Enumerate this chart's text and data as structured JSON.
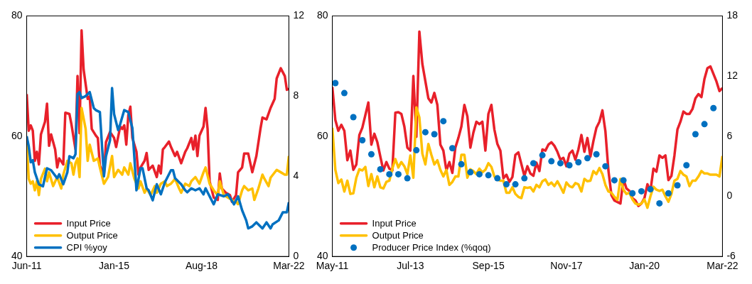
{
  "chart_data": [
    {
      "type": "line",
      "xlim": [
        "2011-06",
        "2022-03"
      ],
      "xticks": [
        {
          "value": "2011-06",
          "label": "Jun-11"
        },
        {
          "value": "2015-01",
          "label": "Jan-15"
        },
        {
          "value": "2018-08",
          "label": "Aug-18"
        },
        {
          "value": "2022-03",
          "label": "Mar-22"
        }
      ],
      "ylim": [
        40,
        80
      ],
      "yticks": [
        40,
        60,
        80
      ],
      "y2lim": [
        0,
        12
      ],
      "y2ticks": [
        0,
        4,
        8,
        12
      ],
      "legend": "bottom left",
      "series": [
        {
          "name": "Input Price",
          "color": "#e8202a",
          "marker": "none",
          "x": [
            "2011-06",
            "2011-07",
            "2011-08",
            "2011-09",
            "2011-10",
            "2011-11",
            "2011-12",
            "2012-01",
            "2012-03",
            "2012-04",
            "2012-05",
            "2012-06",
            "2012-08",
            "2012-09",
            "2012-10",
            "2012-12",
            "2013-01",
            "2013-03",
            "2013-04",
            "2013-06",
            "2013-07",
            "2013-08",
            "2013-09",
            "2013-10",
            "2013-12",
            "2014-01",
            "2014-02",
            "2014-04",
            "2014-05",
            "2014-06",
            "2014-08",
            "2014-09",
            "2014-11",
            "2015-01",
            "2015-02",
            "2015-04",
            "2015-05",
            "2015-06",
            "2015-07",
            "2015-08",
            "2015-09",
            "2015-10",
            "2015-12",
            "2016-01",
            "2016-02",
            "2016-04",
            "2016-05",
            "2016-06",
            "2016-08",
            "2016-10",
            "2016-11",
            "2016-12",
            "2017-01",
            "2017-02",
            "2017-04",
            "2017-05",
            "2017-07",
            "2017-08",
            "2017-10",
            "2017-12",
            "2018-01",
            "2018-03",
            "2018-04",
            "2018-05",
            "2018-06",
            "2018-07",
            "2018-09",
            "2018-10",
            "2018-11",
            "2018-12",
            "2019-02",
            "2019-04",
            "2019-05",
            "2019-06",
            "2019-08",
            "2019-10",
            "2019-11",
            "2020-01",
            "2020-02",
            "2020-04",
            "2020-05",
            "2020-07",
            "2020-09",
            "2020-11",
            "2021-01",
            "2021-02",
            "2021-04",
            "2021-06",
            "2021-08",
            "2021-09",
            "2021-11",
            "2022-01",
            "2022-02",
            "2022-03"
          ],
          "values": [
            67,
            60.9,
            61.8,
            60.9,
            55.9,
            57.4,
            55.3,
            60.3,
            62.4,
            65.4,
            58.4,
            60.3,
            57.8,
            54.8,
            56.3,
            55.3,
            63.9,
            63.7,
            62,
            57.8,
            70,
            60.5,
            77.6,
            71.1,
            66.2,
            66.6,
            61.2,
            60.1,
            59.7,
            55.1,
            53.6,
            59,
            60.7,
            59.7,
            58.2,
            61.6,
            61.2,
            61.8,
            58.6,
            63.5,
            64.9,
            59.7,
            57.4,
            53.6,
            54.8,
            55.9,
            57.2,
            54.4,
            55.1,
            53.2,
            55.1,
            53.8,
            57.8,
            58.2,
            59.1,
            58.2,
            56.7,
            57.4,
            55.5,
            57.4,
            58,
            59.7,
            57.8,
            60.1,
            56.7,
            60.1,
            61.6,
            64.7,
            61.2,
            52.5,
            49.8,
            49.4,
            53.8,
            51.3,
            50.6,
            50.2,
            49.1,
            50.2,
            54,
            54.8,
            57.1,
            57.1,
            54,
            56.7,
            61.2,
            63.1,
            62.8,
            64.7,
            66.2,
            69.6,
            71.3,
            70,
            67.7,
            67.9
          ]
        },
        {
          "name": "Output Price",
          "color": "#ffc000",
          "marker": "none",
          "x": [
            "2011-06",
            "2011-07",
            "2011-08",
            "2011-09",
            "2011-10",
            "2011-11",
            "2011-12",
            "2012-01",
            "2012-03",
            "2012-04",
            "2012-05",
            "2012-07",
            "2012-09",
            "2012-11",
            "2012-12",
            "2013-02",
            "2013-04",
            "2013-05",
            "2013-06",
            "2013-07",
            "2013-08",
            "2013-09",
            "2013-11",
            "2013-12",
            "2014-01",
            "2014-03",
            "2014-05",
            "2014-06",
            "2014-08",
            "2014-10",
            "2014-12",
            "2015-01",
            "2015-03",
            "2015-05",
            "2015-06",
            "2015-08",
            "2015-09",
            "2015-11",
            "2016-01",
            "2016-02",
            "2016-04",
            "2016-05",
            "2016-07",
            "2016-09",
            "2016-10",
            "2016-12",
            "2017-02",
            "2017-03",
            "2017-05",
            "2017-07",
            "2017-09",
            "2017-10",
            "2017-12",
            "2018-02",
            "2018-03",
            "2018-05",
            "2018-07",
            "2018-09",
            "2018-10",
            "2018-12",
            "2019-02",
            "2019-04",
            "2019-05",
            "2019-07",
            "2019-09",
            "2019-11",
            "2019-12",
            "2020-01",
            "2020-02",
            "2020-04",
            "2020-05",
            "2020-07",
            "2020-09",
            "2020-10",
            "2020-12",
            "2021-02",
            "2021-03",
            "2021-05",
            "2021-06",
            "2021-09",
            "2021-11",
            "2022-01",
            "2022-02",
            "2022-03"
          ],
          "values": [
            59,
            52.9,
            52.1,
            52.5,
            51,
            52.5,
            50.2,
            52.9,
            54.6,
            52.5,
            54,
            51.7,
            53.2,
            51.3,
            53.6,
            55.9,
            55.5,
            53.6,
            55.5,
            56.3,
            53.2,
            64.7,
            61.2,
            55.9,
            58.6,
            55.9,
            56.3,
            54.8,
            52.1,
            53.2,
            56.7,
            53.2,
            54.4,
            53.6,
            54.8,
            53.6,
            55.5,
            52.9,
            51.3,
            52.5,
            50.6,
            51.3,
            50.2,
            51.7,
            50.6,
            52.1,
            52.5,
            51.7,
            52.1,
            52.9,
            51.3,
            50.6,
            52.1,
            51.7,
            52.5,
            53.2,
            52.1,
            54,
            54.8,
            52.1,
            51,
            50.2,
            52.5,
            50.2,
            49.8,
            49.4,
            49.1,
            49.1,
            48.7,
            51,
            51.7,
            51,
            51.3,
            49.4,
            51.3,
            53.6,
            52.9,
            51.7,
            53.1,
            54.4,
            54,
            53.6,
            53.6,
            56.7
          ]
        },
        {
          "name": "CPI %yoy",
          "color": "#0070c0",
          "marker": "none",
          "axis": "y2",
          "x": [
            "2011-06",
            "2011-07",
            "2011-08",
            "2011-09",
            "2011-10",
            "2011-12",
            "2012-02",
            "2012-04",
            "2012-06",
            "2012-09",
            "2012-10",
            "2012-12",
            "2013-02",
            "2013-03",
            "2013-05",
            "2013-06",
            "2013-07",
            "2013-08",
            "2013-09",
            "2013-11",
            "2014-01",
            "2014-03",
            "2014-04",
            "2014-06",
            "2014-08",
            "2014-09",
            "2014-11",
            "2014-12",
            "2015-01",
            "2015-03",
            "2015-04",
            "2015-06",
            "2015-08",
            "2015-10",
            "2015-11",
            "2015-12",
            "2016-02",
            "2016-03",
            "2016-05",
            "2016-06",
            "2016-08",
            "2016-10",
            "2016-12",
            "2017-02",
            "2017-05",
            "2017-06",
            "2017-07",
            "2017-10",
            "2017-12",
            "2018-01",
            "2018-03",
            "2018-05",
            "2018-07",
            "2018-09",
            "2018-10",
            "2018-12",
            "2019-02",
            "2019-04",
            "2019-07",
            "2019-09",
            "2019-12",
            "2020-02",
            "2020-04",
            "2020-06",
            "2020-07",
            "2020-09",
            "2020-11",
            "2021-02",
            "2021-04",
            "2021-06",
            "2021-07",
            "2021-10",
            "2021-12",
            "2022-02",
            "2022-03"
          ],
          "values": [
            6.0,
            5.5,
            4.7,
            4.8,
            4.2,
            3.6,
            3.5,
            4.4,
            4.3,
            3.9,
            4.1,
            3.6,
            4.2,
            5.0,
            4.9,
            5.1,
            8.1,
            8.2,
            7.9,
            8.0,
            8.2,
            7.4,
            7.3,
            7.2,
            4.0,
            5.0,
            5.8,
            8.4,
            7.1,
            6.3,
            6.6,
            7.3,
            7.2,
            6.4,
            4.9,
            3.3,
            4.4,
            4.4,
            3.4,
            3.3,
            2.8,
            3.6,
            3.1,
            3.7,
            4.3,
            4.3,
            3.9,
            3.6,
            3.3,
            3.2,
            3.4,
            3.3,
            3.4,
            3.1,
            3.4,
            3.0,
            2.6,
            3.1,
            3.0,
            3.1,
            2.6,
            3.0,
            2.3,
            1.8,
            1.4,
            1.5,
            1.7,
            1.4,
            1.7,
            1.4,
            1.6,
            1.8,
            2.2,
            2.2,
            2.7
          ]
        }
      ]
    },
    {
      "type": "line",
      "xlim": [
        "2011-05",
        "2022-03"
      ],
      "xticks": [
        {
          "value": "2011-05",
          "label": "May-11"
        },
        {
          "value": "2013-07",
          "label": "Jul-13"
        },
        {
          "value": "2015-09",
          "label": "Sep-15"
        },
        {
          "value": "2017-11",
          "label": "Nov-17"
        },
        {
          "value": "2020-01",
          "label": "Jan-20"
        },
        {
          "value": "2022-03",
          "label": "Mar-22"
        }
      ],
      "ylim": [
        40,
        80
      ],
      "yticks": [
        40,
        60,
        80
      ],
      "y2lim": [
        -6,
        18
      ],
      "y2ticks": [
        -6,
        0,
        6,
        12,
        18
      ],
      "legend": "bottom left",
      "x": [
        "2011-05",
        "2011-06",
        "2011-07",
        "2011-08",
        "2011-09",
        "2011-10",
        "2011-11",
        "2011-12",
        "2012-01",
        "2012-02",
        "2012-03",
        "2012-04",
        "2012-05",
        "2012-06",
        "2012-07",
        "2012-08",
        "2012-09",
        "2012-10",
        "2012-11",
        "2012-12",
        "2013-01",
        "2013-02",
        "2013-03",
        "2013-04",
        "2013-05",
        "2013-06",
        "2013-07",
        "2013-08",
        "2013-09",
        "2013-10",
        "2013-11",
        "2013-12",
        "2014-01",
        "2014-02",
        "2014-03",
        "2014-04",
        "2014-05",
        "2014-06",
        "2014-07",
        "2014-08",
        "2014-09",
        "2014-10",
        "2014-11",
        "2014-12",
        "2015-01",
        "2015-02",
        "2015-03",
        "2015-04",
        "2015-05",
        "2015-06",
        "2015-07",
        "2015-08",
        "2015-09",
        "2015-10",
        "2015-11",
        "2015-12",
        "2016-01",
        "2016-02",
        "2016-03",
        "2016-04",
        "2016-05",
        "2016-06",
        "2016-07",
        "2016-08",
        "2016-09",
        "2016-10",
        "2016-11",
        "2016-12",
        "2017-01",
        "2017-02",
        "2017-03",
        "2017-04",
        "2017-05",
        "2017-06",
        "2017-07",
        "2017-08",
        "2017-09",
        "2017-10",
        "2017-11",
        "2017-12",
        "2018-01",
        "2018-02",
        "2018-03",
        "2018-04",
        "2018-05",
        "2018-06",
        "2018-07",
        "2018-08",
        "2018-09",
        "2018-10",
        "2018-11",
        "2018-12",
        "2019-01",
        "2019-02",
        "2019-03",
        "2019-04",
        "2019-05",
        "2019-06",
        "2019-07",
        "2019-08",
        "2019-09",
        "2019-10",
        "2019-11",
        "2019-12",
        "2020-01",
        "2020-02",
        "2020-03",
        "2020-04",
        "2020-05",
        "2020-06",
        "2020-07",
        "2020-08",
        "2020-09",
        "2020-10",
        "2020-11",
        "2020-12",
        "2021-01",
        "2021-02",
        "2021-03",
        "2021-04",
        "2021-05",
        "2021-06",
        "2021-07",
        "2021-08",
        "2021-09",
        "2021-10",
        "2021-11",
        "2021-12",
        "2022-01",
        "2022-02",
        "2022-03"
      ],
      "series": [
        {
          "name": "Input Price",
          "color": "#e8202a",
          "marker": "none",
          "x": [
            "2011-05",
            "2011-06",
            "2011-07",
            "2011-08",
            "2011-09",
            "2011-10",
            "2011-11",
            "2011-12",
            "2012-01",
            "2012-02",
            "2012-03",
            "2012-04",
            "2012-05",
            "2012-06",
            "2012-07",
            "2012-08",
            "2012-09",
            "2012-10",
            "2012-11",
            "2012-12",
            "2013-01",
            "2013-02",
            "2013-03",
            "2013-04",
            "2013-05",
            "2013-06",
            "2013-07",
            "2013-08",
            "2013-09",
            "2013-10",
            "2013-11",
            "2014-01",
            "2014-02",
            "2014-03",
            "2014-04",
            "2014-05",
            "2014-06",
            "2014-07",
            "2014-08",
            "2014-09",
            "2014-10",
            "2014-11",
            "2014-12",
            "2015-01",
            "2015-02",
            "2015-03",
            "2015-04",
            "2015-05",
            "2015-06",
            "2015-07",
            "2015-08",
            "2015-09",
            "2015-10",
            "2015-11",
            "2015-12",
            "2016-01",
            "2016-02",
            "2016-03",
            "2016-04",
            "2016-05",
            "2016-06",
            "2016-07",
            "2016-09",
            "2016-10",
            "2016-11",
            "2016-12",
            "2017-01",
            "2017-02",
            "2017-03",
            "2017-04",
            "2017-05",
            "2017-06",
            "2017-07",
            "2017-08",
            "2017-09",
            "2017-10",
            "2017-11",
            "2017-12",
            "2018-01",
            "2018-02",
            "2018-03",
            "2018-04",
            "2018-05",
            "2018-06",
            "2018-07",
            "2018-08",
            "2018-09",
            "2018-10",
            "2018-11",
            "2018-12",
            "2019-01",
            "2019-02",
            "2019-03",
            "2019-05",
            "2019-06",
            "2019-07",
            "2019-08",
            "2019-09",
            "2019-10",
            "2019-11",
            "2019-12",
            "2020-01",
            "2020-02",
            "2020-03",
            "2020-04",
            "2020-05",
            "2020-06",
            "2020-07",
            "2020-08",
            "2020-09",
            "2020-10",
            "2020-11",
            "2020-12",
            "2021-01",
            "2021-02",
            "2021-03",
            "2021-04",
            "2021-05",
            "2021-06",
            "2021-07",
            "2021-08",
            "2021-09",
            "2021-10",
            "2021-11",
            "2022-01",
            "2022-02",
            "2022-03"
          ],
          "values": [
            68.2,
            62.7,
            60.9,
            61.9,
            60.9,
            56.0,
            57.6,
            54.4,
            55.3,
            60.2,
            61.4,
            63.5,
            65.6,
            58.6,
            60.4,
            59.0,
            56.6,
            54.3,
            55.7,
            54.6,
            54.3,
            63.9,
            64.0,
            63.7,
            61.6,
            58.1,
            57.6,
            70.0,
            59.9,
            77.4,
            72.0,
            66.3,
            65.6,
            67.2,
            65.2,
            58.6,
            57.6,
            54.3,
            55.7,
            53.9,
            58.1,
            59.7,
            61.6,
            65.2,
            63.3,
            58.1,
            60.6,
            62.4,
            62.0,
            62.4,
            57.6,
            63.7,
            65.2,
            61.1,
            58.7,
            57.6,
            53.0,
            53.6,
            52.4,
            53.2,
            56.9,
            57.3,
            53.4,
            55.0,
            53.8,
            53.4,
            55.6,
            54.2,
            57.8,
            57.6,
            58.6,
            59.0,
            58.4,
            57.4,
            56.1,
            56.4,
            55.0,
            57.1,
            57.6,
            56.1,
            57.8,
            60.2,
            57.4,
            59.7,
            56.6,
            59.2,
            61.4,
            62.4,
            64.3,
            60.8,
            54.3,
            50.2,
            49.3,
            48.8,
            52.9,
            51.3,
            50.9,
            49.7,
            49.3,
            48.4,
            48.8,
            49.7,
            52.0,
            50.9,
            54.6,
            54.1,
            56.8,
            56.4,
            56.8,
            52.7,
            53.4,
            56.8,
            61.1,
            62.4,
            64.1,
            63.7,
            63.7,
            64.5,
            66.3,
            67.0,
            66.5,
            69.5,
            71.3,
            71.6,
            69.1,
            67.5,
            68.0
          ]
        },
        {
          "name": "Output Price",
          "color": "#ffc000",
          "marker": "none",
          "values": [
            61.4,
            54.4,
            52.2,
            52.8,
            50.8,
            52.6,
            50.4,
            50.5,
            53.1,
            54.5,
            54.3,
            54.9,
            51.7,
            53.7,
            51.5,
            53.3,
            51.5,
            51.3,
            52.4,
            52.6,
            54.6,
            56.2,
            54.8,
            55.7,
            55.0,
            53.7,
            56.8,
            53.1,
            64.8,
            63.1,
            57.1,
            55.3,
            58.7,
            56.9,
            55.3,
            56.0,
            54.4,
            53.3,
            54.4,
            51.9,
            52.4,
            53.3,
            53.3,
            56.9,
            56.9,
            53.1,
            54.5,
            54.2,
            53.7,
            54.6,
            54.0,
            54.4,
            55.5,
            54.9,
            53.3,
            52.8,
            52.6,
            52.6,
            50.6,
            50.6,
            51.5,
            50.4,
            49.9,
            49.7,
            51.5,
            51.4,
            51.5,
            50.8,
            51.9,
            51.5,
            52.5,
            52.8,
            51.9,
            52.3,
            51.7,
            52.5,
            51.6,
            50.6,
            52.3,
            51.7,
            51.5,
            52.2,
            52.0,
            50.8,
            52.9,
            52.5,
            52.6,
            54.2,
            53.7,
            54.7,
            53.7,
            51.9,
            50.8,
            50.6,
            49.9,
            49.4,
            52.9,
            51.1,
            50.4,
            50.6,
            49.5,
            48.8,
            48.6,
            48.8,
            49.5,
            48.1,
            50.0,
            51.6,
            51.1,
            50.9,
            51.1,
            50.0,
            49.1,
            50.4,
            52.6,
            52.9,
            54.2,
            53.6,
            53.3,
            51.7,
            52.6,
            52.6,
            53.3,
            54.2,
            53.8,
            53.8,
            53.6,
            53.6,
            53.6,
            53.3,
            56.7
          ]
        },
        {
          "name": "Producer Price Index (%qoq)",
          "type": "scatter",
          "color": "#0070c0",
          "marker": "circle",
          "axis": "y2",
          "x": [
            "2011-06",
            "2011-09",
            "2011-12",
            "2012-03",
            "2012-06",
            "2012-09",
            "2012-12",
            "2013-03",
            "2013-06",
            "2013-09",
            "2013-12",
            "2014-03",
            "2014-06",
            "2014-09",
            "2014-12",
            "2015-03",
            "2015-06",
            "2015-09",
            "2015-12",
            "2016-03",
            "2016-06",
            "2016-09",
            "2016-12",
            "2017-03",
            "2017-06",
            "2017-09",
            "2017-12",
            "2018-03",
            "2018-06",
            "2018-09",
            "2018-12",
            "2019-03",
            "2019-06",
            "2019-09",
            "2019-12",
            "2020-03",
            "2020-06",
            "2020-09",
            "2020-12",
            "2021-03",
            "2021-06",
            "2021-09",
            "2021-12"
          ],
          "values": [
            11.3,
            10.3,
            7.9,
            5.6,
            4.2,
            2.7,
            2.2,
            2.2,
            1.8,
            4.6,
            6.4,
            6.2,
            7.5,
            4.8,
            3.2,
            2.4,
            2.2,
            2.1,
            1.8,
            1.2,
            1.2,
            1.8,
            3.3,
            4.1,
            3.5,
            3.3,
            3.1,
            3.4,
            3.8,
            4.2,
            3.0,
            1.6,
            1.6,
            0.3,
            0.5,
            0.7,
            -0.7,
            0.3,
            1.1,
            3.1,
            6.2,
            7.2,
            8.8
          ]
        }
      ]
    }
  ]
}
